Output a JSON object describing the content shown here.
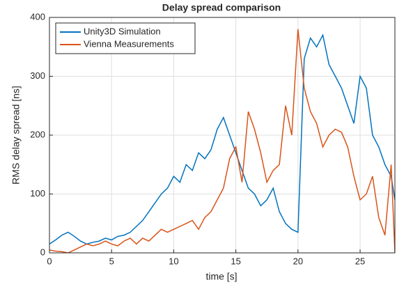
{
  "chart_data": {
    "type": "line",
    "title": "Delay spread comparison",
    "xlabel": "time [s]",
    "ylabel": "RMS delay spread [ns]",
    "x": [
      0,
      0.5,
      1,
      1.5,
      2,
      2.5,
      3,
      3.5,
      4,
      4.5,
      5,
      5.5,
      6,
      6.5,
      7,
      7.5,
      8,
      8.5,
      9,
      9.5,
      10,
      10.5,
      11,
      11.5,
      12,
      12.5,
      13,
      13.5,
      14,
      14.5,
      15,
      15.5,
      16,
      16.5,
      17,
      17.5,
      18,
      18.5,
      19,
      19.5,
      20,
      20.5,
      21,
      21.5,
      22,
      22.5,
      23,
      23.5,
      24,
      24.5,
      25,
      25.5,
      26,
      26.5,
      27,
      27.5,
      27.8
    ],
    "series": [
      {
        "name": "Unity3D Simulation",
        "color": "#0072bd",
        "values": [
          15,
          22,
          30,
          35,
          28,
          20,
          15,
          18,
          20,
          25,
          22,
          28,
          30,
          35,
          45,
          55,
          70,
          85,
          100,
          110,
          130,
          120,
          150,
          140,
          170,
          160,
          175,
          210,
          230,
          200,
          170,
          140,
          110,
          100,
          80,
          90,
          110,
          70,
          50,
          40,
          35,
          330,
          365,
          350,
          370,
          320,
          300,
          280,
          250,
          220,
          300,
          280,
          200,
          180,
          150,
          130,
          90
        ]
      },
      {
        "name": "Vienna Measurements",
        "color": "#d95319",
        "values": [
          5,
          3,
          2,
          0,
          5,
          10,
          15,
          12,
          15,
          20,
          15,
          12,
          20,
          25,
          15,
          25,
          20,
          30,
          40,
          35,
          40,
          45,
          50,
          55,
          40,
          60,
          70,
          90,
          110,
          160,
          180,
          120,
          240,
          210,
          170,
          120,
          140,
          150,
          250,
          200,
          380,
          280,
          240,
          220,
          180,
          200,
          210,
          205,
          180,
          130,
          90,
          100,
          130,
          60,
          30,
          150,
          0
        ]
      }
    ],
    "xlim": [
      0,
      27.8
    ],
    "ylim": [
      0,
      400
    ],
    "xticks": [
      0,
      5,
      10,
      15,
      20,
      25
    ],
    "yticks": [
      0,
      100,
      200,
      300,
      400
    ],
    "grid": true,
    "legend": "northwest"
  }
}
